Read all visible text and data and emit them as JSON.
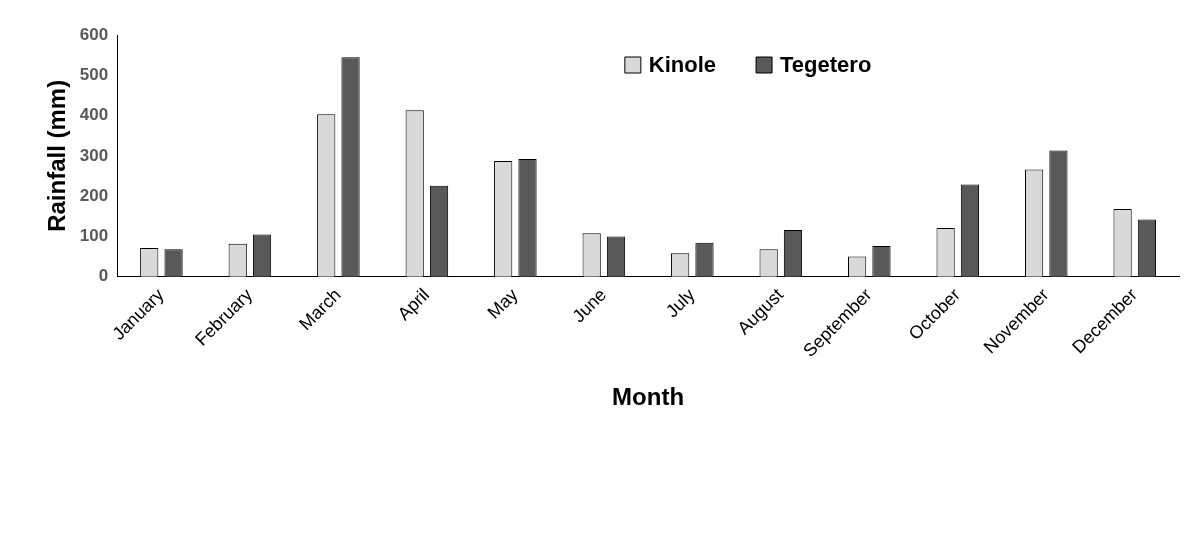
{
  "chart_data": {
    "type": "bar",
    "xlabel": "Month",
    "ylabel": "Rainfall (mm)",
    "categories": [
      "January",
      "February",
      "March",
      "April",
      "May",
      "June",
      "July",
      "August",
      "September",
      "October",
      "November",
      "December"
    ],
    "series": [
      {
        "name": "Kinole",
        "color": "#d9d9d9",
        "values": [
          71,
          82,
          403,
          413,
          287,
          108,
          58,
          68,
          50,
          121,
          266,
          168
        ]
      },
      {
        "name": "Tegetero",
        "color": "#595959",
        "values": [
          68,
          105,
          545,
          226,
          292,
          100,
          84,
          116,
          76,
          229,
          313,
          142
        ]
      }
    ],
    "ylim": [
      0,
      600
    ],
    "yticks": [
      0,
      100,
      200,
      300,
      400,
      500,
      600
    ],
    "grid": false,
    "legend": "top"
  }
}
